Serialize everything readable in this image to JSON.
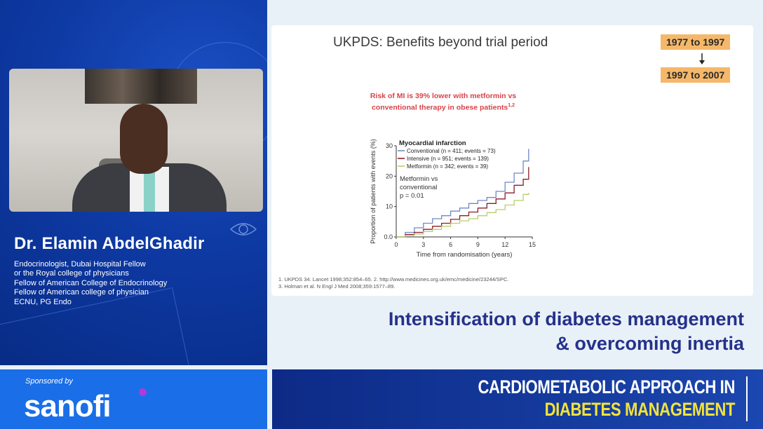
{
  "speaker": {
    "name": "Dr. Elamin AbdelGhadir",
    "credentials": [
      "Endocrinologist, Dubai Hospital Fellow",
      "or the Royal college of physicians",
      "Fellow of American College of Endocrinology",
      "Fellow of American college of physician",
      "ECNU, PG Endo"
    ]
  },
  "slide": {
    "title": "UKPDS: Benefits beyond trial period",
    "badge_top": "1977 to 1997",
    "badge_bottom": "1997 to 2007",
    "note_line1": "Risk of MI is 39% lower with metformin vs",
    "note_line2": "conventional therapy in obese patients",
    "note_sup": "1,2",
    "references": [
      "1. UKPDS 34. Lancet 1998;352:854–65.  2. http://www.medicines.org.uk/emc/medicine/23244/SPC.",
      "3. Holman et al. N Engl J Med 2008;359:1577–89."
    ]
  },
  "chart_data": {
    "type": "line",
    "title": "Myocardial infarction",
    "xlabel": "Time from randomisation (years)",
    "ylabel": "Proportion of patients with events (%)",
    "xlim": [
      0,
      15
    ],
    "ylim": [
      0,
      30
    ],
    "x_ticks": [
      "0",
      "3",
      "6",
      "9",
      "12",
      "15"
    ],
    "y_ticks": [
      "0.0",
      "10",
      "20",
      "30"
    ],
    "annotation": [
      "Metformin vs",
      "conventional",
      "p = 0.01"
    ],
    "series": [
      {
        "name": "Conventional (n = 411; events = 73)",
        "color": "#6f88c9",
        "x": [
          0,
          1,
          2,
          3,
          4,
          5,
          6,
          7,
          8,
          9,
          10,
          11,
          12,
          13,
          14,
          14.6
        ],
        "y": [
          0,
          1.5,
          3,
          4.5,
          6,
          7,
          8.5,
          9.5,
          11,
          12,
          13,
          15,
          18,
          21,
          25,
          29
        ]
      },
      {
        "name": "Intensive (n = 951; events = 139)",
        "color": "#8a1f2a",
        "x": [
          0,
          1,
          2,
          3,
          4,
          5,
          6,
          7,
          8,
          9,
          10,
          11,
          12,
          13,
          14,
          14.6
        ],
        "y": [
          0,
          0.8,
          1.5,
          2.5,
          3.5,
          4.5,
          5.8,
          7,
          8.2,
          9.5,
          11,
          12.5,
          14.5,
          17,
          19,
          23
        ]
      },
      {
        "name": "Metformin (n = 342; events = 39)",
        "color": "#b7cf6a",
        "x": [
          0,
          1,
          2,
          3,
          4,
          5,
          6,
          7,
          8,
          9,
          10,
          11,
          12,
          13,
          14,
          14.6
        ],
        "y": [
          0,
          0.5,
          1,
          1.8,
          2.5,
          3.5,
          4.5,
          5.3,
          6,
          7,
          8,
          9,
          10.5,
          12,
          14,
          14.5
        ]
      }
    ]
  },
  "session_title": {
    "line1": "Intensification of diabetes management",
    "line2": "& overcoming inertia"
  },
  "sponsor": {
    "label": "Sponsored by",
    "name": "sanofi"
  },
  "event": {
    "line1": "CARDIOMETABOLIC APPROACH IN",
    "line2": "DIABETES MANAGEMENT"
  },
  "colors": {
    "accent_orange": "#f5b86a",
    "note_red": "#d8434a",
    "session_navy": "#25318a",
    "event_yellow": "#f2e33a",
    "sponsor_blue": "#1a6ee8"
  }
}
